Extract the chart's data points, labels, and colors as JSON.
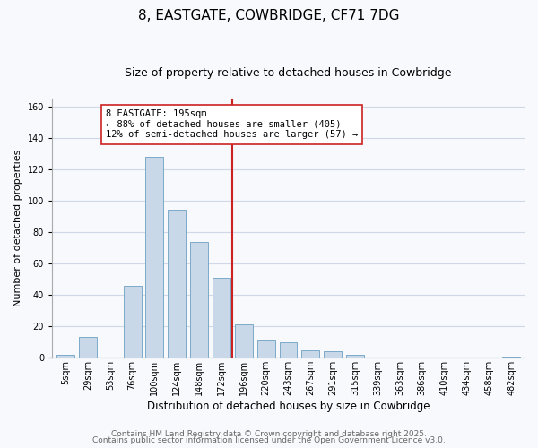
{
  "title": "8, EASTGATE, COWBRIDGE, CF71 7DG",
  "subtitle": "Size of property relative to detached houses in Cowbridge",
  "xlabel": "Distribution of detached houses by size in Cowbridge",
  "ylabel": "Number of detached properties",
  "categories": [
    "5sqm",
    "29sqm",
    "53sqm",
    "76sqm",
    "100sqm",
    "124sqm",
    "148sqm",
    "172sqm",
    "196sqm",
    "220sqm",
    "243sqm",
    "267sqm",
    "291sqm",
    "315sqm",
    "339sqm",
    "363sqm",
    "386sqm",
    "410sqm",
    "434sqm",
    "458sqm",
    "482sqm"
  ],
  "values": [
    2,
    13,
    0,
    46,
    128,
    94,
    74,
    51,
    21,
    11,
    10,
    5,
    4,
    2,
    0,
    0,
    0,
    0,
    0,
    0,
    1
  ],
  "bar_color": "#c8d8e8",
  "bar_edge_color": "#7aaac8",
  "vline_color": "#cc2222",
  "annotation_text": "8 EASTGATE: 195sqm\n← 88% of detached houses are smaller (405)\n12% of semi-detached houses are larger (57) →",
  "annotation_box_color": "#ffffff",
  "annotation_box_edge_color": "#cc2222",
  "ylim": [
    0,
    165
  ],
  "grid_color": "#d0d8e8",
  "background_color": "#f7f9fc",
  "footer_line1": "Contains HM Land Registry data © Crown copyright and database right 2025.",
  "footer_line2": "Contains public sector information licensed under the Open Government Licence v3.0.",
  "title_fontsize": 11,
  "subtitle_fontsize": 9,
  "xlabel_fontsize": 8.5,
  "ylabel_fontsize": 8,
  "tick_fontsize": 7,
  "annotation_fontsize": 7.5,
  "footer_fontsize": 6.5
}
